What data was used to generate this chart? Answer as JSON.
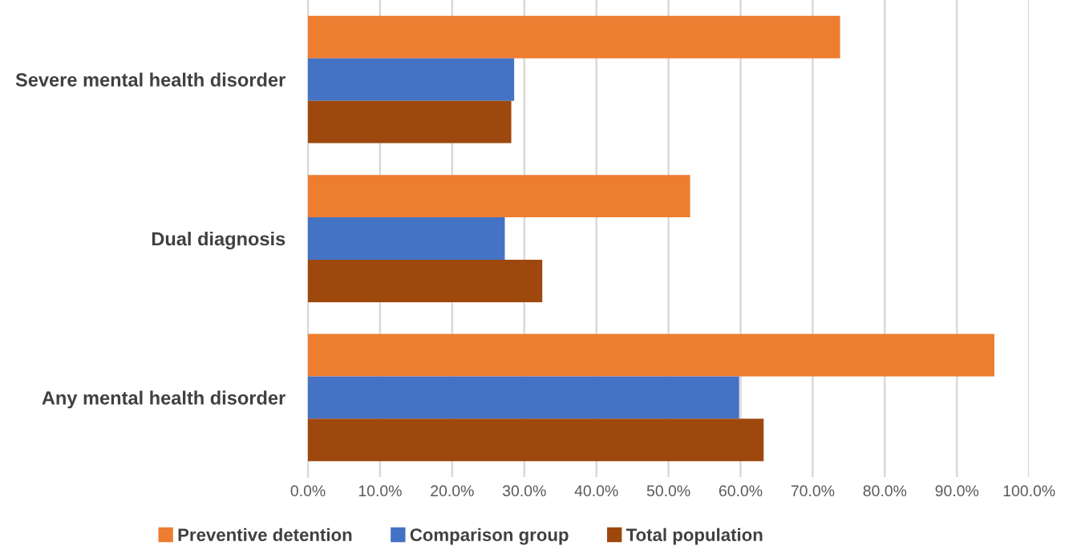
{
  "chart_data": {
    "type": "bar",
    "orientation": "horizontal",
    "categories": [
      "Severe mental health disorder",
      "Dual diagnosis",
      "Any mental health disorder"
    ],
    "series": [
      {
        "name": "Preventive detention",
        "color": "#ed7d31",
        "values": [
          73.8,
          53.0,
          95.2
        ]
      },
      {
        "name": "Comparison group",
        "color": "#4472c4",
        "values": [
          28.6,
          27.3,
          59.8
        ]
      },
      {
        "name": "Total population",
        "color": "#9e480e",
        "values": [
          28.2,
          32.5,
          63.2
        ]
      }
    ],
    "xlim": [
      0,
      100
    ],
    "xticks": [
      {
        "value": 0,
        "label": "0.0%"
      },
      {
        "value": 10,
        "label": "10.0%"
      },
      {
        "value": 20,
        "label": "20.0%"
      },
      {
        "value": 30,
        "label": "30.0%"
      },
      {
        "value": 40,
        "label": "40.0%"
      },
      {
        "value": 50,
        "label": "50.0%"
      },
      {
        "value": 60,
        "label": "60.0%"
      },
      {
        "value": 70,
        "label": "70.0%"
      },
      {
        "value": 80,
        "label": "80.0%"
      },
      {
        "value": 90,
        "label": "90.0%"
      },
      {
        "value": 100,
        "label": "100.0%"
      }
    ],
    "grid": "x",
    "legend": "bottom"
  }
}
